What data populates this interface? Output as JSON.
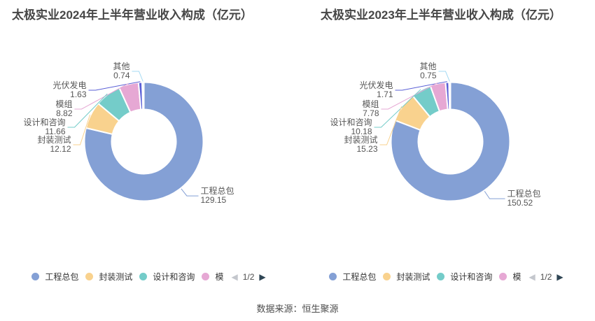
{
  "source": "数据来源：恒生聚源",
  "legend": {
    "items": [
      {
        "label": "工程总包",
        "color": "#84A0D5"
      },
      {
        "label": "封装测试",
        "color": "#F9D28E"
      },
      {
        "label": "设计和咨询",
        "color": "#74CCC9"
      },
      {
        "label": "模",
        "color": "#E6A8D4"
      }
    ],
    "pager": {
      "prev": "◀",
      "current": "1/2",
      "next": "▶"
    }
  },
  "chart_data": [
    {
      "type": "pie",
      "title": "太极实业2024年上半年营业收入构成（亿元）",
      "unit": "亿元",
      "donut": true,
      "legend_position": "bottom",
      "series": [
        {
          "name": "工程总包",
          "value": 129.15,
          "color": "#84A0D5"
        },
        {
          "name": "封装测试",
          "value": 12.12,
          "color": "#F9D28E"
        },
        {
          "name": "设计和咨询",
          "value": 11.66,
          "color": "#74CCC9"
        },
        {
          "name": "模组",
          "value": 8.82,
          "color": "#E6A8D4"
        },
        {
          "name": "光伏发电",
          "value": 1.63,
          "color": "#5A5FD6"
        },
        {
          "name": "其他",
          "value": 0.74,
          "color": "#A4DAF3"
        }
      ]
    },
    {
      "type": "pie",
      "title": "太极实业2023年上半年营业收入构成（亿元）",
      "unit": "亿元",
      "donut": true,
      "legend_position": "bottom",
      "series": [
        {
          "name": "工程总包",
          "value": 150.52,
          "color": "#84A0D5"
        },
        {
          "name": "封装测试",
          "value": 15.23,
          "color": "#F9D28E"
        },
        {
          "name": "设计和咨询",
          "value": 10.18,
          "color": "#74CCC9"
        },
        {
          "name": "模组",
          "value": 7.78,
          "color": "#E6A8D4"
        },
        {
          "name": "光伏发电",
          "value": 1.71,
          "color": "#5A5FD6"
        },
        {
          "name": "其他",
          "value": 0.75,
          "color": "#A4DAF3"
        }
      ]
    }
  ]
}
